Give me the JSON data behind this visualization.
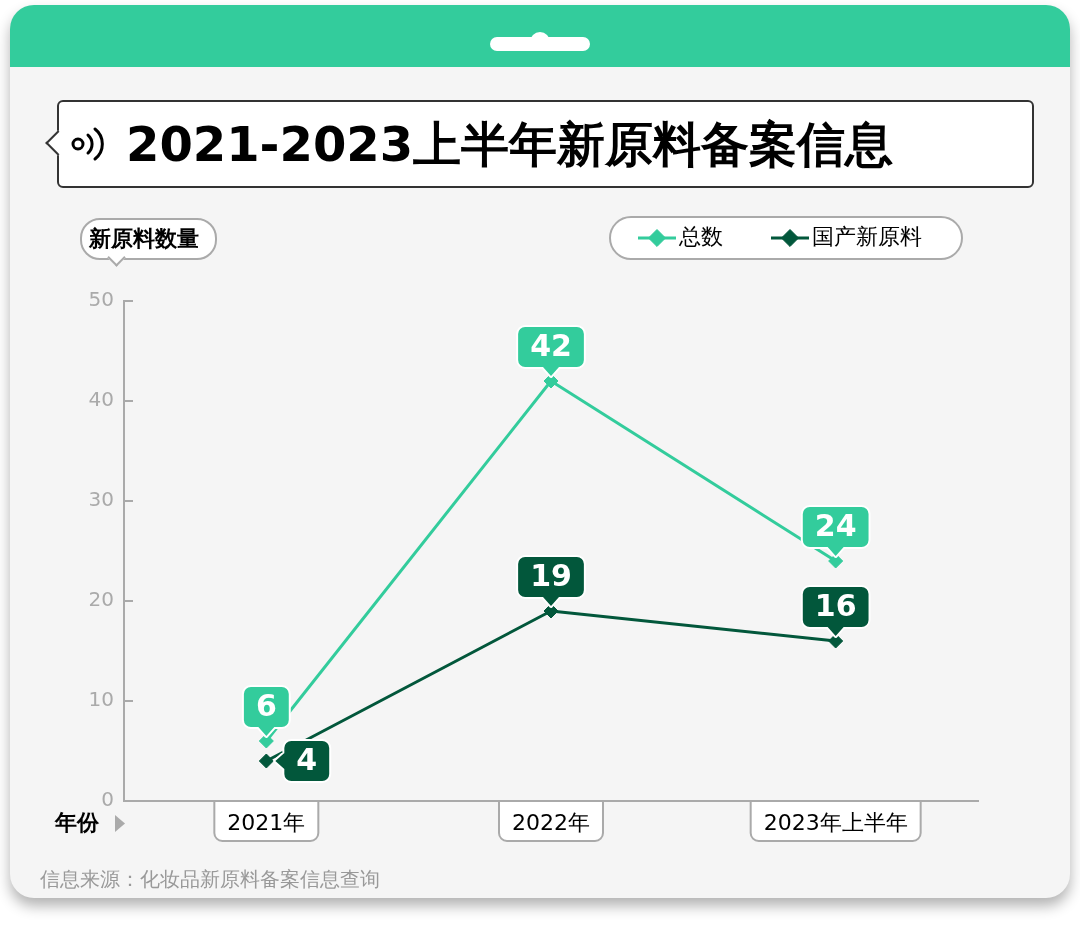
{
  "chart_data": {
    "type": "line",
    "title": "2021-2023上半年新原料备案信息",
    "xlabel": "年份",
    "ylabel": "新原料数量",
    "categories": [
      "2021年",
      "2022年",
      "2023年上半年"
    ],
    "series": [
      {
        "name": "总数",
        "color": "#33cc9c",
        "values": [
          6,
          42,
          24
        ]
      },
      {
        "name": "国产新原料",
        "color": "#02573b",
        "values": [
          4,
          19,
          16
        ]
      }
    ],
    "ylim": [
      0,
      50
    ],
    "yticks": [
      0,
      10,
      20,
      30,
      40,
      50
    ],
    "legend": "top right",
    "marker": "diamond",
    "line_style": "solid",
    "data_labels": true,
    "annotations": [
      "信息来源：化妆品新原料备案信息查询"
    ]
  }
}
